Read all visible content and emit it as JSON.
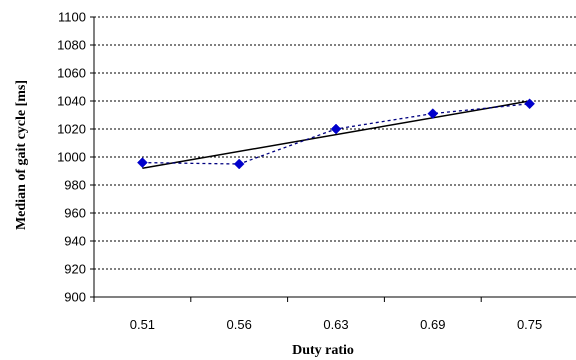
{
  "chart_data": {
    "type": "scatter",
    "title": "",
    "xlabel": "Duty ratio",
    "ylabel": "Median of gait cycle [ms]",
    "categories": [
      "0.51",
      "0.56",
      "0.63",
      "0.69",
      "0.75"
    ],
    "series": [
      {
        "values": [
          996,
          995,
          1020,
          1031,
          1038
        ],
        "marker": "diamond",
        "color": "#0000cc",
        "connector": "dotted"
      }
    ],
    "trendline": {
      "type": "linear",
      "start": 992,
      "end": 1040,
      "color": "#000000"
    },
    "ylim": [
      900,
      1100
    ],
    "y_ticks": [
      900,
      920,
      940,
      960,
      980,
      1000,
      1020,
      1040,
      1060,
      1080,
      1100
    ],
    "grid": "horizontal dotted",
    "legend": "none"
  }
}
